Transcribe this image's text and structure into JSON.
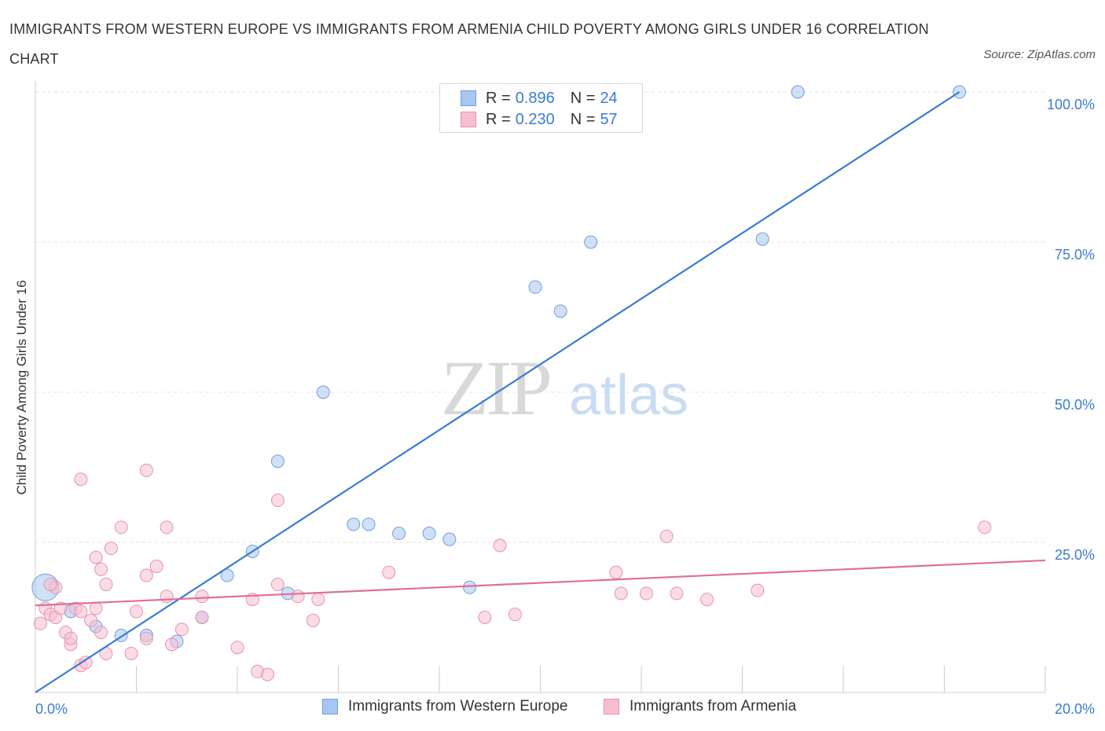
{
  "title": "IMMIGRANTS FROM WESTERN EUROPE VS IMMIGRANTS FROM ARMENIA CHILD POVERTY AMONG GIRLS UNDER 16 CORRELATION CHART",
  "source": "Source: ZipAtlas.com",
  "watermark": {
    "zip": "ZIP",
    "atlas": "atlas"
  },
  "legend": {
    "r_label": "R =",
    "n_label": "N =",
    "rows": [
      {
        "r": "0.896",
        "n": "24",
        "color": "#a7c7f0",
        "border": "#6f9fdc"
      },
      {
        "r": "0.230",
        "n": "57",
        "color": "#f6bfd0",
        "border": "#e892ad"
      }
    ]
  },
  "chart_data": {
    "type": "scatter",
    "title": "IMMIGRANTS FROM WESTERN EUROPE VS IMMIGRANTS FROM ARMENIA CHILD POVERTY AMONG GIRLS UNDER 16 CORRELATION CHART",
    "xlabel": "",
    "ylabel": "Child Poverty Among Girls Under 16",
    "xlim": [
      0,
      20
    ],
    "ylim": [
      0,
      100
    ],
    "x_tick_labels": [
      "0.0%",
      "20.0%"
    ],
    "y_tick_labels": [
      "100.0%",
      "75.0%",
      "50.0%",
      "25.0%"
    ],
    "y_ticks": [
      100,
      75,
      50,
      25
    ],
    "grid": true,
    "legend_position": "bottom",
    "series": [
      {
        "name": "Immigrants from Western Europe",
        "color": "#a7c7f0",
        "border": "#6f9fdc",
        "line_color": "#3a7bd5",
        "trend": [
          [
            0,
            0
          ],
          [
            18.3,
            100
          ]
        ],
        "points": [
          [
            0.2,
            17.5
          ],
          [
            0.7,
            13.5
          ],
          [
            1.2,
            11
          ],
          [
            1.7,
            9.5
          ],
          [
            2.2,
            9.5
          ],
          [
            2.8,
            8.5
          ],
          [
            3.3,
            12.5
          ],
          [
            3.8,
            19.5
          ],
          [
            4.3,
            23.5
          ],
          [
            5.0,
            16.5
          ],
          [
            4.8,
            38.5
          ],
          [
            5.7,
            50
          ],
          [
            6.3,
            28
          ],
          [
            6.6,
            28
          ],
          [
            7.2,
            26.5
          ],
          [
            7.8,
            26.5
          ],
          [
            8.2,
            25.5
          ],
          [
            8.6,
            17.5
          ],
          [
            9.9,
            67.5
          ],
          [
            10.4,
            63.5
          ],
          [
            11.0,
            75
          ],
          [
            14.4,
            75.5
          ],
          [
            15.1,
            100
          ],
          [
            18.3,
            100
          ]
        ]
      },
      {
        "name": "Immigrants from Armenia",
        "color": "#f6bfd0",
        "border": "#e892ad",
        "line_color": "#e06e99",
        "trend": [
          [
            0,
            14.5
          ],
          [
            20,
            22
          ]
        ],
        "points": [
          [
            0.1,
            11.5
          ],
          [
            0.2,
            14
          ],
          [
            0.3,
            13
          ],
          [
            0.4,
            17.5
          ],
          [
            0.3,
            18
          ],
          [
            0.4,
            12.5
          ],
          [
            0.6,
            10
          ],
          [
            0.5,
            14
          ],
          [
            0.7,
            8
          ],
          [
            0.8,
            14
          ],
          [
            0.7,
            9
          ],
          [
            0.9,
            13.5
          ],
          [
            0.9,
            4.5
          ],
          [
            1.0,
            5
          ],
          [
            1.2,
            22.5
          ],
          [
            1.1,
            12
          ],
          [
            1.2,
            14
          ],
          [
            1.3,
            10
          ],
          [
            1.4,
            6.5
          ],
          [
            1.3,
            20.5
          ],
          [
            1.4,
            18
          ],
          [
            1.5,
            24
          ],
          [
            1.7,
            27.5
          ],
          [
            1.9,
            6.5
          ],
          [
            2.0,
            13.5
          ],
          [
            2.2,
            9
          ],
          [
            2.2,
            19.5
          ],
          [
            2.4,
            21
          ],
          [
            2.6,
            16
          ],
          [
            2.6,
            27.5
          ],
          [
            2.7,
            8
          ],
          [
            2.9,
            10.5
          ],
          [
            2.2,
            37
          ],
          [
            0.9,
            35.5
          ],
          [
            3.3,
            16
          ],
          [
            3.3,
            12.5
          ],
          [
            4.0,
            7.5
          ],
          [
            4.3,
            15.5
          ],
          [
            4.4,
            3.5
          ],
          [
            4.6,
            3
          ],
          [
            4.8,
            18
          ],
          [
            4.8,
            32
          ],
          [
            5.2,
            16
          ],
          [
            5.6,
            15.5
          ],
          [
            5.5,
            12
          ],
          [
            7.0,
            20
          ],
          [
            8.9,
            12.5
          ],
          [
            9.2,
            24.5
          ],
          [
            9.5,
            13
          ],
          [
            11.5,
            20
          ],
          [
            11.6,
            16.5
          ],
          [
            12.1,
            16.5
          ],
          [
            12.5,
            26
          ],
          [
            12.7,
            16.5
          ],
          [
            13.3,
            15.5
          ],
          [
            14.3,
            17
          ],
          [
            18.8,
            27.5
          ]
        ]
      }
    ]
  }
}
